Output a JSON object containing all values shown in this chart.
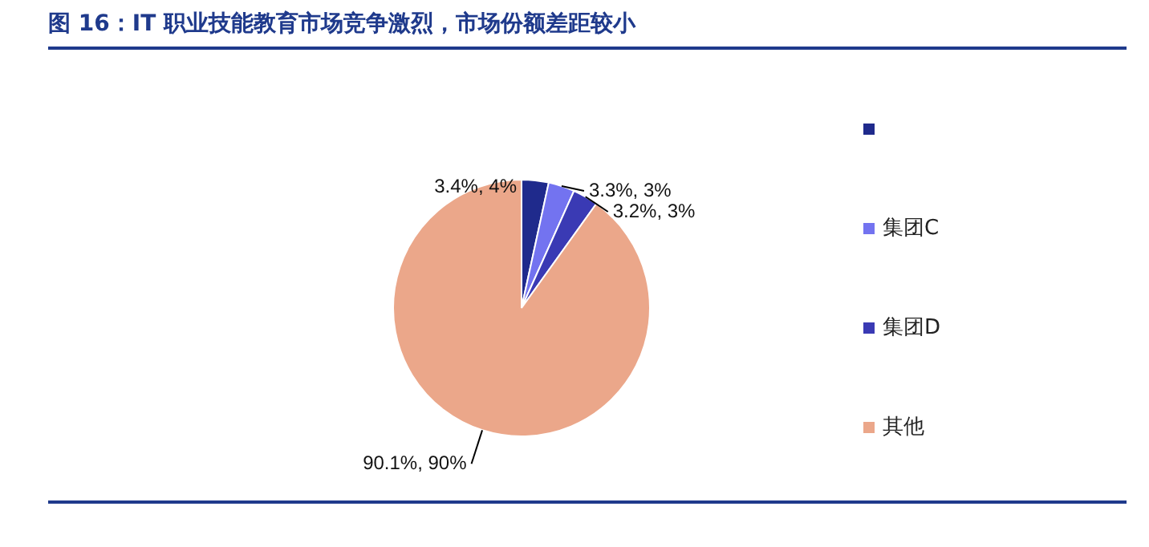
{
  "chart_data": {
    "type": "pie",
    "title": "图 16：IT 职业技能教育市场竞争激烈，市场份额差距较小",
    "categories": [
      null,
      "集团C",
      "集团D",
      "其他"
    ],
    "values": [
      3.4,
      3.3,
      3.2,
      90.1
    ],
    "value_labels": [
      "3.4%, 4%",
      "3.3%, 3%",
      "3.2%, 3%",
      "90.1%, 90%"
    ],
    "colors": [
      "#1f2a8c",
      "#7373f0",
      "#3a3ab4",
      "#eba78a"
    ],
    "legend": "right"
  }
}
